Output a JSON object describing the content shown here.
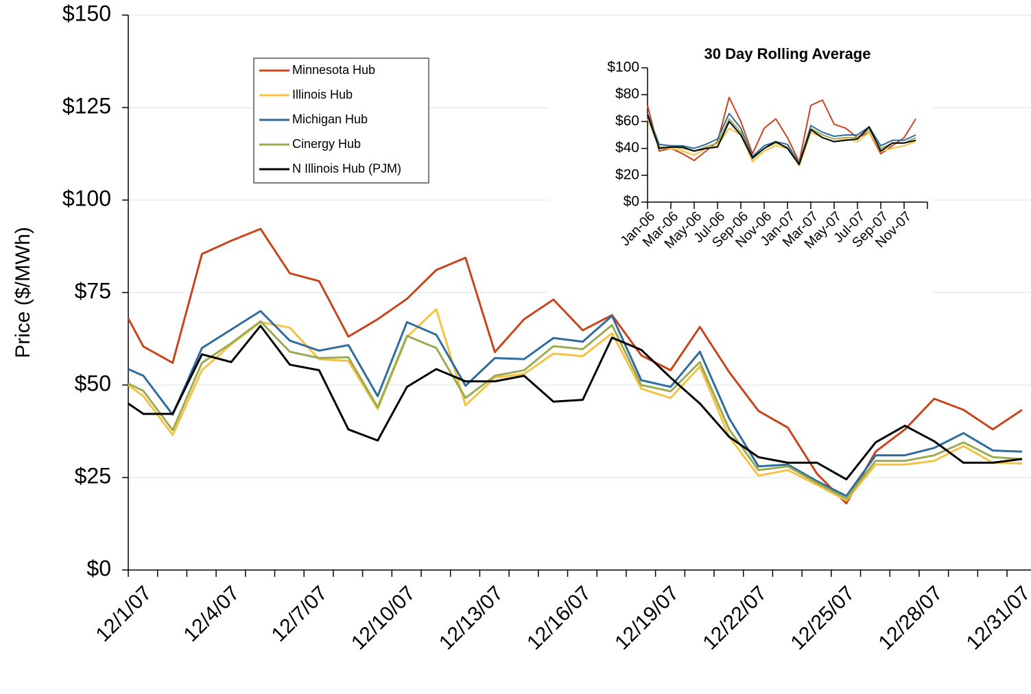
{
  "chart_data": [
    {
      "type": "line",
      "y_label": "Price ($/MWh)",
      "categories": [
        null,
        "12/1/07",
        null,
        null,
        "12/4/07",
        null,
        null,
        "12/7/07",
        null,
        null,
        "12/10/07",
        null,
        null,
        "12/13/07",
        null,
        null,
        "12/16/07",
        null,
        null,
        "12/19/07",
        null,
        null,
        "12/22/07",
        null,
        null,
        "12/25/07",
        null,
        null,
        "12/28/07",
        null,
        null,
        "12/31/07"
      ],
      "ylim": [
        0,
        150
      ],
      "yticks": [
        {
          "value": 0,
          "label": "$0"
        },
        {
          "value": 25,
          "label": "$25"
        },
        {
          "value": 50,
          "label": "$50"
        },
        {
          "value": 75,
          "label": "$75"
        },
        {
          "value": 100,
          "label": "$100"
        },
        {
          "value": 125,
          "label": "$125"
        },
        {
          "value": 150,
          "label": "$150"
        }
      ],
      "grid": true,
      "legend": "upper-left",
      "series": [
        {
          "name": "Minnesota Hub",
          "color": "#c8441a",
          "values": [
            68,
            60.4,
            56,
            85.4,
            89,
            92.2,
            80.2,
            78.1,
            63.1,
            67.8,
            73.3,
            81.1,
            84.4,
            58.9,
            67.8,
            73.1,
            64.8,
            68.9,
            58,
            54,
            65.7,
            53.5,
            43,
            38.5,
            26,
            18,
            32,
            38,
            46.3,
            43.3,
            38,
            43.3
          ]
        },
        {
          "name": "Illinois Hub",
          "color": "#f5c242",
          "values": [
            50,
            47,
            36.5,
            54,
            61,
            67,
            65.5,
            57,
            56.5,
            43.5,
            63,
            70.5,
            44.5,
            52,
            53,
            58.5,
            57.8,
            64,
            49,
            46.5,
            55,
            36,
            25.5,
            27,
            23,
            18.8,
            28.5,
            28.5,
            29.5,
            33.5,
            29,
            28.8
          ]
        },
        {
          "name": "Michigan Hub",
          "color": "#2e6c9e",
          "values": [
            54.3,
            52.5,
            42,
            60,
            65,
            70,
            62,
            59.3,
            60.8,
            47,
            67,
            63.6,
            49.8,
            57.3,
            57,
            62.7,
            61.7,
            68.7,
            51.3,
            49.5,
            59,
            41,
            28,
            28.5,
            24,
            20,
            31,
            31,
            33,
            37,
            32.3,
            32
          ]
        },
        {
          "name": "Cinergy Hub",
          "color": "#9aab52",
          "values": [
            50.4,
            48.4,
            37.8,
            56,
            61.3,
            67.2,
            59,
            57.3,
            57.5,
            44,
            63.3,
            60,
            46.5,
            52.5,
            54,
            60.5,
            59.7,
            66.2,
            50,
            48.3,
            56.2,
            38,
            27,
            28,
            23.5,
            19.3,
            29.5,
            29.5,
            31,
            34.5,
            30.5,
            30
          ]
        },
        {
          "name": "N Illinois Hub (PJM)",
          "color": "#000000",
          "values": [
            45,
            42.2,
            42.2,
            58.3,
            56.2,
            66,
            55.5,
            54,
            38,
            35,
            49.5,
            54.3,
            51,
            51,
            52.5,
            45.5,
            46,
            62.8,
            59.5,
            52,
            45,
            36,
            30.5,
            29,
            29,
            24.5,
            34.5,
            39,
            34.8,
            29,
            29,
            30
          ]
        }
      ]
    },
    {
      "type": "line",
      "title": "30 Day Rolling Average",
      "categories": [
        "Jan-06",
        null,
        "Mar-06",
        null,
        "May-06",
        null,
        "Jul-06",
        null,
        "Sep-06",
        null,
        "Nov-06",
        null,
        "Jan-07",
        null,
        "Mar-07",
        null,
        "May-07",
        null,
        "Jul-07",
        null,
        "Sep-07",
        null,
        "Nov-07",
        null
      ],
      "ylim": [
        0,
        100
      ],
      "yticks": [
        {
          "value": 0,
          "label": "$0"
        },
        {
          "value": 20,
          "label": "$20"
        },
        {
          "value": 40,
          "label": "$40"
        },
        {
          "value": 60,
          "label": "$60"
        },
        {
          "value": 80,
          "label": "$80"
        },
        {
          "value": 100,
          "label": "$100"
        }
      ],
      "series": [
        {
          "color": "#c8441a",
          "values": [
            72,
            38,
            40,
            36,
            31,
            38,
            45,
            78,
            60,
            36,
            55,
            62,
            48,
            30,
            72,
            76,
            58,
            55,
            48,
            52,
            36,
            42,
            48,
            62
          ]
        },
        {
          "color": "#f5c242",
          "values": [
            62,
            40,
            40,
            38,
            35,
            40,
            42,
            55,
            50,
            30,
            38,
            42,
            40,
            27,
            52,
            48,
            45,
            47,
            45,
            52,
            38,
            40,
            42,
            45
          ]
        },
        {
          "color": "#2e6c9e",
          "values": [
            66,
            43,
            42,
            42,
            40,
            43,
            47,
            66,
            55,
            34,
            42,
            45,
            43,
            29,
            57,
            52,
            49,
            50,
            50,
            56,
            42,
            46,
            46,
            50
          ]
        },
        {
          "color": "#9aab52",
          "values": [
            64,
            41,
            41,
            40,
            38,
            41,
            44,
            62,
            52,
            32,
            40,
            44,
            41,
            28,
            55,
            50,
            47,
            48,
            48,
            54,
            40,
            44,
            44,
            48
          ]
        },
        {
          "color": "#000000",
          "values": [
            65,
            40,
            41,
            41,
            38,
            40,
            41,
            60,
            50,
            33,
            40,
            45,
            40,
            28,
            54,
            48,
            45,
            46,
            47,
            56,
            38,
            44,
            44,
            46
          ]
        }
      ]
    }
  ]
}
